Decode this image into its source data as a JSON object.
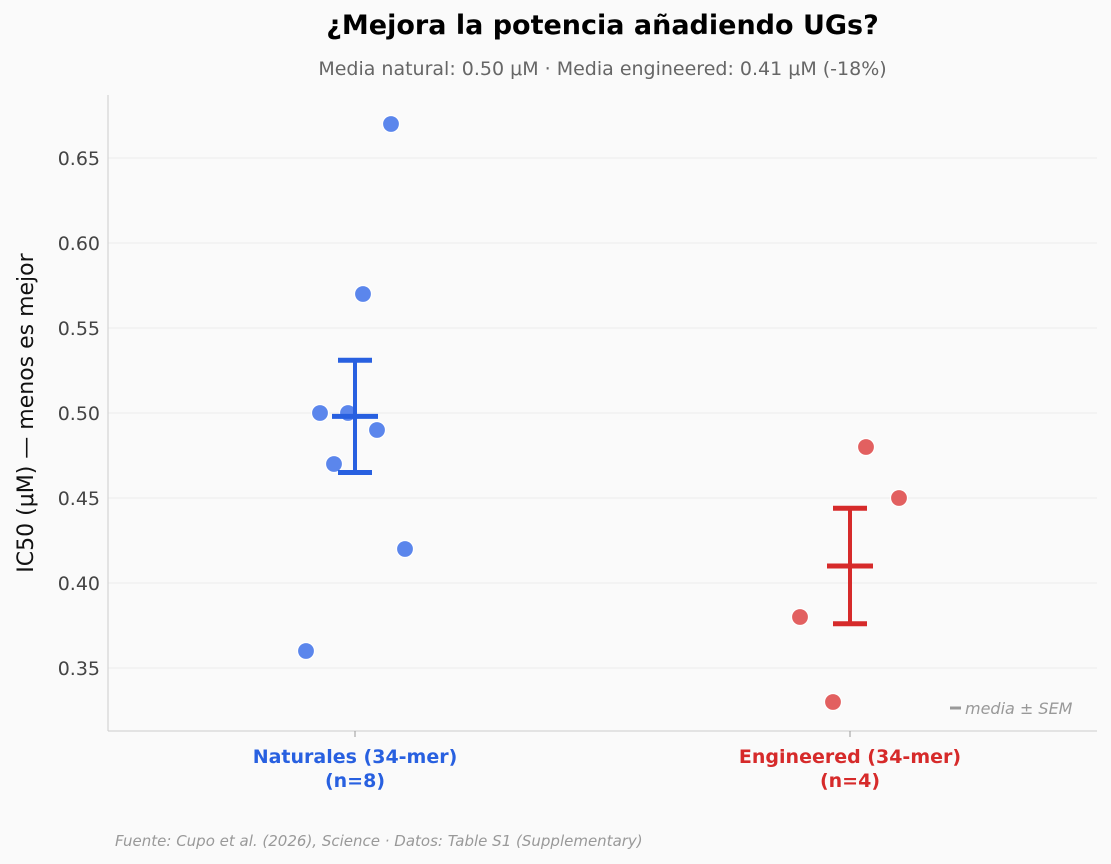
{
  "chart_data": {
    "type": "scatter",
    "title": "¿Mejora la potencia añadiendo UGs?",
    "subtitle": "Media natural: 0.50 μM · Media engineered: 0.41 μM (-18%)",
    "ylabel": "IC50 (μM) — menos es mejor",
    "ylim": [
      0.313,
      0.687
    ],
    "yticks": [
      "0.35",
      "0.40",
      "0.45",
      "0.50",
      "0.55",
      "0.60",
      "0.65"
    ],
    "grid": true,
    "categories": [
      {
        "label_line1": "Naturales (34-mer)",
        "label_line2": "(n=8)",
        "color": "#2860e0",
        "point_color": "#5b86ec"
      },
      {
        "label_line1": "Engineered (34-mer)",
        "label_line2": "(n=4)",
        "color": "#d62a2a",
        "point_color": "#e26060"
      }
    ],
    "series": [
      {
        "values": [
          0.67,
          0.57,
          0.5,
          0.5,
          0.49,
          0.47,
          0.42,
          0.36
        ],
        "mean": 0.498,
        "sem": 0.033
      },
      {
        "values": [
          0.48,
          0.45,
          0.38,
          0.33
        ],
        "mean": 0.41,
        "sem": 0.034
      }
    ],
    "legend_note": "media ± SEM",
    "source": "Fuente: Cupo et al. (2026), Science · Datos: Table S1 (Supplementary)"
  }
}
